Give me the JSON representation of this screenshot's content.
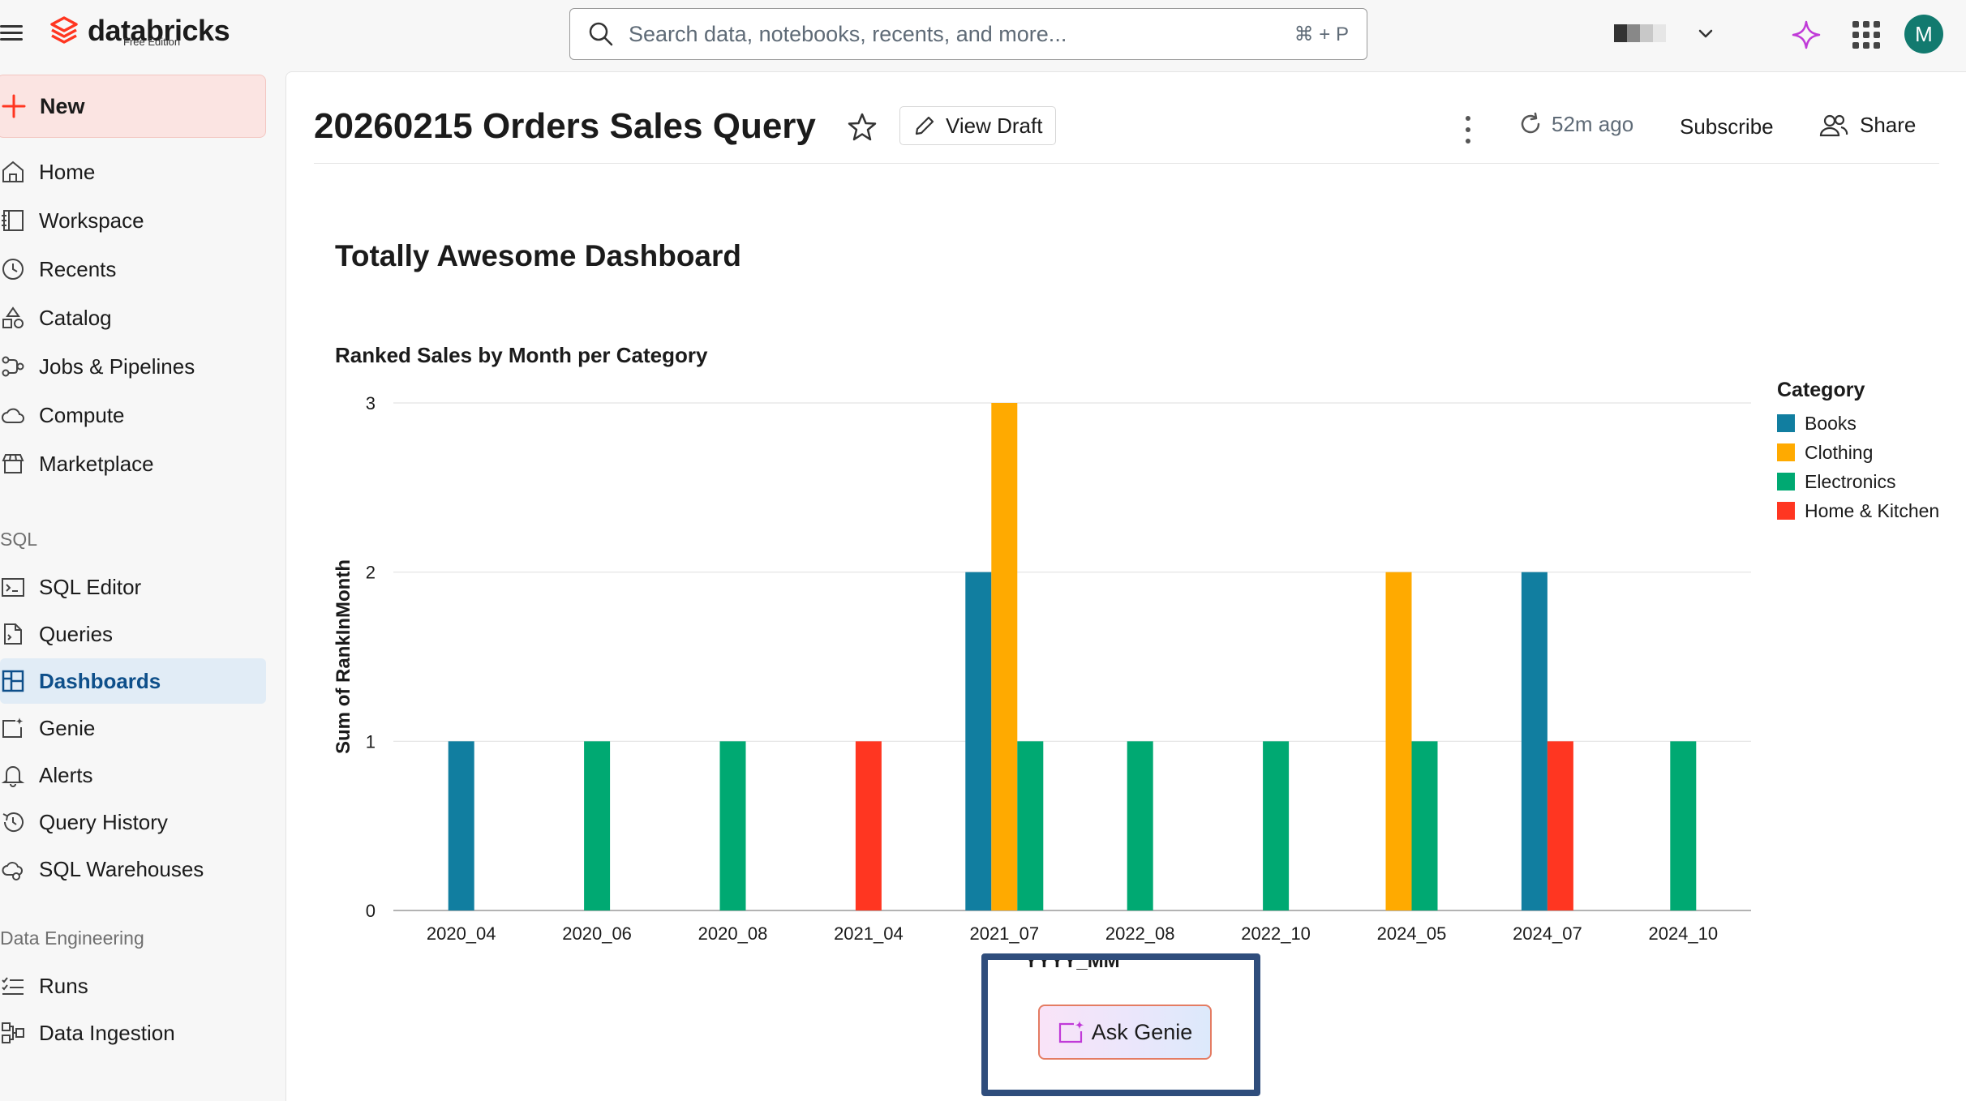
{
  "topbar": {
    "brand": "databricks",
    "brand_sub": "Free Edition",
    "search_placeholder": "Search data, notebooks, recents, and more...",
    "search_shortcut": "⌘ + P",
    "avatar_initial": "M"
  },
  "sidebar": {
    "new_label": "New",
    "items": [
      {
        "label": "Home",
        "icon": "home-icon"
      },
      {
        "label": "Workspace",
        "icon": "workspace-icon"
      },
      {
        "label": "Recents",
        "icon": "clock-icon"
      },
      {
        "label": "Catalog",
        "icon": "catalog-icon"
      },
      {
        "label": "Jobs & Pipelines",
        "icon": "workflow-icon"
      },
      {
        "label": "Compute",
        "icon": "cloud-icon"
      },
      {
        "label": "Marketplace",
        "icon": "storefront-icon"
      }
    ],
    "sql_section": "SQL",
    "sql_items": [
      {
        "label": "SQL Editor",
        "icon": "sql-editor-icon"
      },
      {
        "label": "Queries",
        "icon": "query-file-icon"
      },
      {
        "label": "Dashboards",
        "icon": "dashboard-icon",
        "active": true
      },
      {
        "label": "Genie",
        "icon": "genie-icon"
      },
      {
        "label": "Alerts",
        "icon": "bell-icon"
      },
      {
        "label": "Query History",
        "icon": "history-icon"
      },
      {
        "label": "SQL Warehouses",
        "icon": "warehouse-icon"
      }
    ],
    "de_section": "Data Engineering",
    "de_items": [
      {
        "label": "Runs",
        "icon": "list-check-icon"
      },
      {
        "label": "Data Ingestion",
        "icon": "ingestion-icon"
      }
    ]
  },
  "header": {
    "title": "20260215 Orders Sales Query",
    "view_draft": "View Draft",
    "refresh_age": "52m ago",
    "subscribe": "Subscribe",
    "share": "Share"
  },
  "dashboard": {
    "title": "Totally Awesome Dashboard"
  },
  "chart_data": {
    "type": "bar",
    "title": "Ranked Sales by Month per Category",
    "xlabel": "YYYY_MM",
    "ylabel": "Sum of RankInMonth",
    "ylim": [
      0,
      3
    ],
    "yticks": [
      "0",
      "1",
      "2",
      "3"
    ],
    "grid": true,
    "legend_title": "Category",
    "legend_position": "right",
    "categories": [
      "2020_04",
      "2020_06",
      "2020_08",
      "2021_04",
      "2021_07",
      "2022_08",
      "2022_10",
      "2024_05",
      "2024_07",
      "2024_10"
    ],
    "series": [
      {
        "name": "Books",
        "color": "#117ea0",
        "values": [
          1,
          0,
          0,
          0,
          2,
          0,
          0,
          0,
          2,
          0
        ]
      },
      {
        "name": "Clothing",
        "color": "#ffaa00",
        "values": [
          0,
          0,
          0,
          0,
          3,
          0,
          0,
          2,
          0,
          0
        ]
      },
      {
        "name": "Electronics",
        "color": "#00a972",
        "values": [
          0,
          1,
          1,
          0,
          1,
          1,
          1,
          1,
          0,
          1
        ]
      },
      {
        "name": "Home & Kitchen",
        "color": "#ff3621",
        "values": [
          0,
          0,
          0,
          1,
          0,
          0,
          0,
          0,
          1,
          0
        ]
      }
    ]
  },
  "ask_genie": "Ask Genie"
}
